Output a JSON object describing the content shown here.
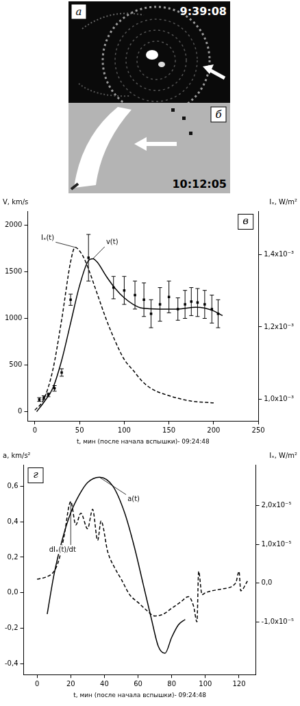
{
  "images": [
    {
      "panel": "а",
      "time": "9:39:08"
    },
    {
      "panel": "б",
      "time": "10:12:05"
    }
  ],
  "chart_data": [
    {
      "type": "line",
      "panel": "в",
      "x_label": "t, мин (после начала вспышки)- 09:24:48",
      "y_label": "V, km/s",
      "y2_label": "Iₓ, W/m²",
      "xlim": [
        -8,
        250
      ],
      "xticks": [
        0,
        50,
        100,
        150,
        200,
        250
      ],
      "ylim": [
        -100,
        2150
      ],
      "yticks": [
        0,
        500,
        1000,
        1500,
        2000
      ],
      "y2lim": [
        0.00094,
        0.00152
      ],
      "y2ticks": [
        {
          "value": 0.001,
          "label": "1,0x10⁻³"
        },
        {
          "value": 0.0012,
          "label": "1,2x10⁻³"
        },
        {
          "value": 0.0014,
          "label": "1,4x10⁻³"
        }
      ],
      "grid": false,
      "series": [
        {
          "name": "Iₓ(t)",
          "axis": "y2",
          "color": "#000000",
          "line_style": "dashed",
          "x": [
            0,
            10,
            20,
            30,
            40,
            45,
            50,
            55,
            60,
            70,
            80,
            90,
            100,
            110,
            120,
            130,
            150,
            175,
            200
          ],
          "values": [
            0.00097,
            0.001,
            0.00108,
            0.00122,
            0.00138,
            0.00142,
            0.00141,
            0.00139,
            0.00136,
            0.00129,
            0.00122,
            0.00116,
            0.00111,
            0.00108,
            0.00105,
            0.00103,
            0.00101,
            0.000995,
            0.00099
          ]
        },
        {
          "name": "v(t)",
          "color": "#000000",
          "line_style": "solid",
          "x": [
            2,
            10,
            20,
            30,
            40,
            50,
            60,
            65,
            70,
            80,
            90,
            100,
            110,
            120,
            140,
            160,
            180,
            190,
            200,
            210
          ],
          "values": [
            0,
            100,
            250,
            550,
            950,
            1350,
            1620,
            1640,
            1600,
            1450,
            1320,
            1220,
            1150,
            1110,
            1100,
            1100,
            1120,
            1110,
            1080,
            1030
          ]
        },
        {
          "type": "scatter",
          "marker": "square",
          "color": "#000000",
          "x": [
            5,
            10,
            15,
            22,
            30,
            40,
            60,
            88,
            100,
            112,
            122,
            130,
            140,
            150,
            160,
            168,
            175,
            182,
            190,
            198,
            205
          ],
          "values": [
            130,
            150,
            180,
            250,
            420,
            1200,
            1650,
            1330,
            1300,
            1250,
            1200,
            1050,
            1150,
            1230,
            1100,
            1150,
            1180,
            1170,
            1150,
            1100,
            1050
          ],
          "errors": [
            20,
            20,
            20,
            30,
            40,
            60,
            250,
            120,
            150,
            150,
            180,
            150,
            180,
            170,
            120,
            150,
            150,
            150,
            150,
            150,
            150
          ]
        }
      ]
    },
    {
      "type": "line",
      "panel": "г",
      "x_label": "t, мин (после начала вспышки)- 09:24:48",
      "y_label": "a, km/s²",
      "y2_label": "Iₓ, W/m²",
      "xlim": [
        -8,
        130
      ],
      "xticks": [
        0,
        20,
        40,
        60,
        80,
        100,
        120
      ],
      "ylim": [
        -0.46,
        0.72
      ],
      "yticks": [
        {
          "value": -0.4,
          "label": "-0,4"
        },
        {
          "value": -0.2,
          "label": "-0,2"
        },
        {
          "value": 0,
          "label": "0,0"
        },
        {
          "value": 0.2,
          "label": "0,2"
        },
        {
          "value": 0.4,
          "label": "0,4"
        },
        {
          "value": 0.6,
          "label": "0,6"
        }
      ],
      "y2lim": [
        -2.36e-05,
        3.05e-05
      ],
      "y2ticks": [
        {
          "value": -1e-05,
          "label": "-1,0x10⁻⁵"
        },
        {
          "value": 0,
          "label": "0,0"
        },
        {
          "value": 1e-05,
          "label": "1,0x10⁻⁵"
        },
        {
          "value": 2e-05,
          "label": "2,0x10⁻⁵"
        }
      ],
      "grid": false,
      "series": [
        {
          "name": "a(t)",
          "color": "#000000",
          "line_style": "solid",
          "x": [
            6,
            10,
            15,
            20,
            25,
            30,
            37,
            45,
            52,
            58,
            63,
            68,
            72,
            76,
            80,
            84,
            88
          ],
          "values": [
            -0.12,
            0.1,
            0.3,
            0.45,
            0.55,
            0.62,
            0.65,
            0.6,
            0.45,
            0.25,
            0.05,
            -0.15,
            -0.3,
            -0.34,
            -0.25,
            -0.18,
            -0.15
          ]
        },
        {
          "name": "dIₓ(t)/dt",
          "axis": "y2",
          "color": "#000000",
          "line_style": "dashed",
          "x": [
            0,
            5,
            10,
            13,
            16,
            20,
            23,
            26,
            30,
            33,
            36,
            38,
            42,
            46,
            50,
            55,
            60,
            65,
            70,
            75,
            80,
            85,
            90,
            93,
            95,
            96,
            98,
            100,
            110,
            118,
            120,
            121,
            125
          ],
          "values": [
            1e-06,
            1.5e-06,
            3e-06,
            6e-06,
            1.2e-05,
            2.1e-05,
            1.5e-05,
            1.8e-05,
            1.4e-05,
            1.9e-05,
            1.1e-05,
            1.6e-05,
            8e-06,
            4e-06,
            1e-06,
            -3e-06,
            -5e-06,
            -7e-06,
            -8.5e-06,
            -8e-06,
            -6.5e-06,
            -5e-06,
            -3.5e-06,
            -6e-06,
            -1e-05,
            3e-06,
            -3e-06,
            -2.5e-06,
            -1.5e-06,
            0,
            3e-06,
            -2e-06,
            5e-07
          ]
        }
      ]
    }
  ]
}
